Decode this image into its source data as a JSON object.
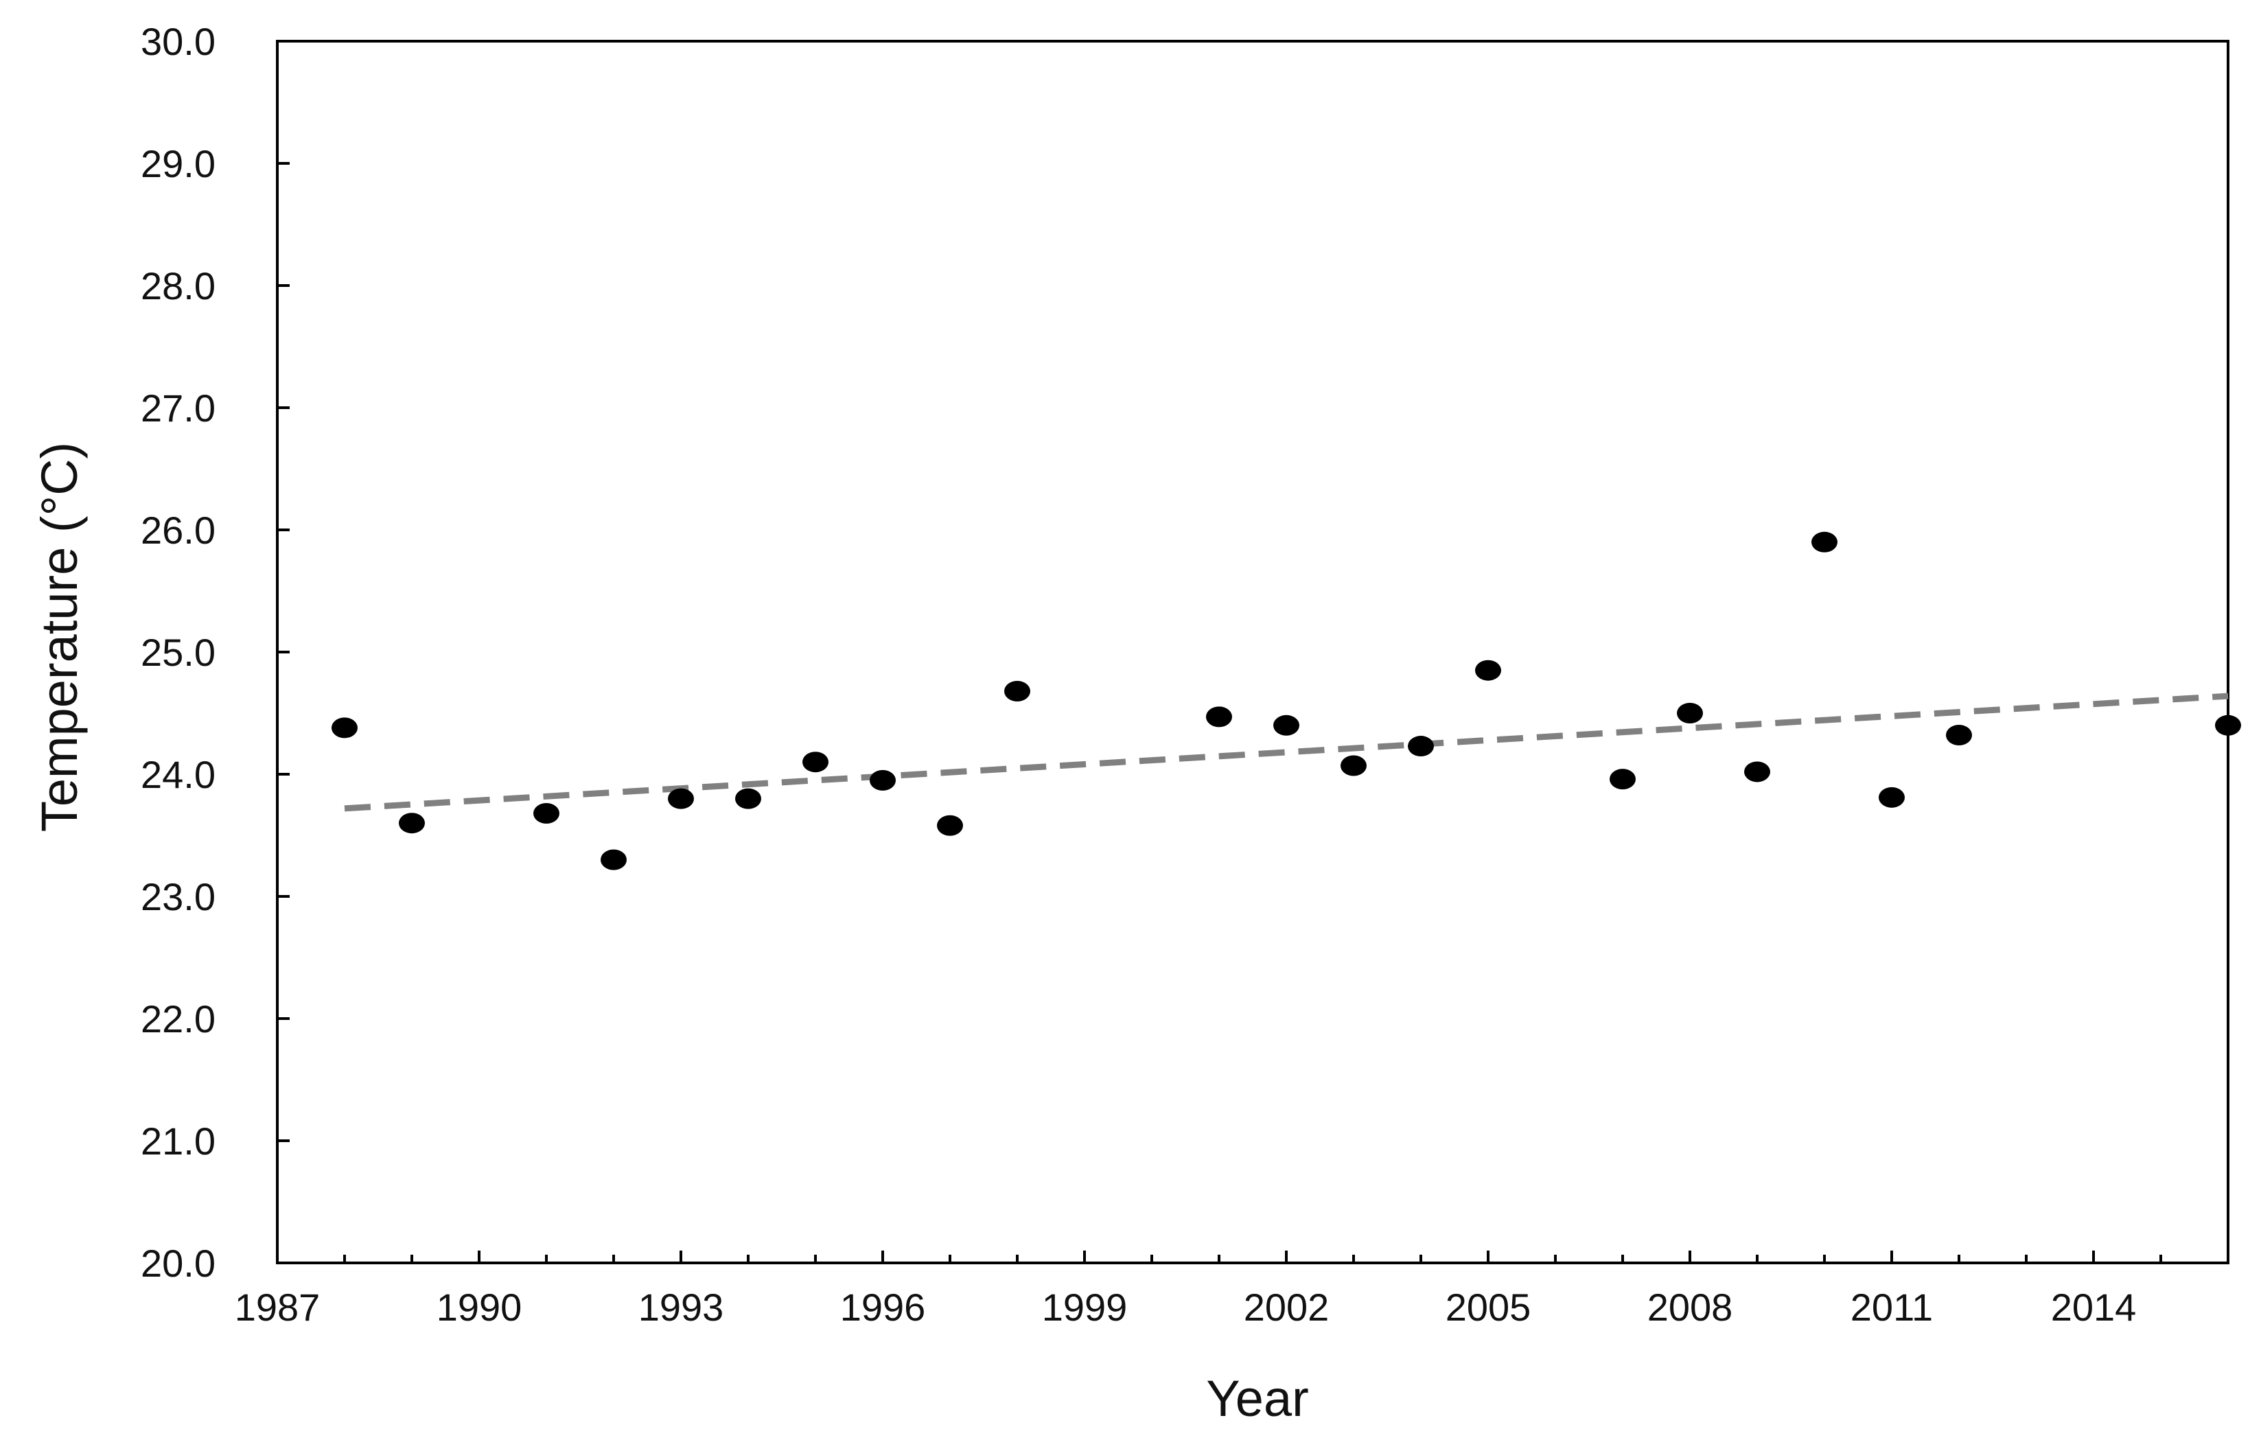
{
  "chart_data": {
    "type": "scatter",
    "title": "",
    "xlabel": "Year",
    "ylabel": "Temperature (°C)",
    "xlim": [
      1987,
      2016
    ],
    "ylim": [
      20.0,
      30.0
    ],
    "x_ticks": [
      "1987",
      "1990",
      "1993",
      "1996",
      "1999",
      "2002",
      "2005",
      "2008",
      "2011",
      "2014"
    ],
    "x_tick_values": [
      1987,
      1990,
      1993,
      1996,
      1999,
      2002,
      2005,
      2008,
      2011,
      2014
    ],
    "y_ticks": [
      "20.0",
      "21.0",
      "22.0",
      "23.0",
      "24.0",
      "25.0",
      "26.0",
      "27.0",
      "28.0",
      "29.0",
      "30.0"
    ],
    "y_tick_values": [
      20,
      21,
      22,
      23,
      24,
      25,
      26,
      27,
      28,
      29,
      30
    ],
    "grid": false,
    "legend": "none",
    "points": [
      {
        "x": 1988,
        "y": 24.38
      },
      {
        "x": 1989,
        "y": 23.6
      },
      {
        "x": 1991,
        "y": 23.68
      },
      {
        "x": 1992,
        "y": 23.3
      },
      {
        "x": 1993,
        "y": 23.8
      },
      {
        "x": 1994,
        "y": 23.8
      },
      {
        "x": 1995,
        "y": 24.1
      },
      {
        "x": 1996,
        "y": 23.95
      },
      {
        "x": 1997,
        "y": 23.58
      },
      {
        "x": 1998,
        "y": 24.68
      },
      {
        "x": 2001,
        "y": 24.47
      },
      {
        "x": 2002,
        "y": 24.4
      },
      {
        "x": 2003,
        "y": 24.07
      },
      {
        "x": 2004,
        "y": 24.23
      },
      {
        "x": 2005,
        "y": 24.85
      },
      {
        "x": 2007,
        "y": 23.96
      },
      {
        "x": 2008,
        "y": 24.5
      },
      {
        "x": 2009,
        "y": 24.02
      },
      {
        "x": 2010,
        "y": 25.9
      },
      {
        "x": 2011,
        "y": 23.81
      },
      {
        "x": 2012,
        "y": 24.32
      },
      {
        "x": 2016,
        "y": 24.4
      }
    ],
    "trendline": {
      "style": "dashed",
      "x": [
        1988,
        2016
      ],
      "y": [
        23.72,
        24.64
      ]
    },
    "colors": {
      "points": "#000000",
      "trendline": "#808080",
      "axes": "#000000"
    }
  }
}
